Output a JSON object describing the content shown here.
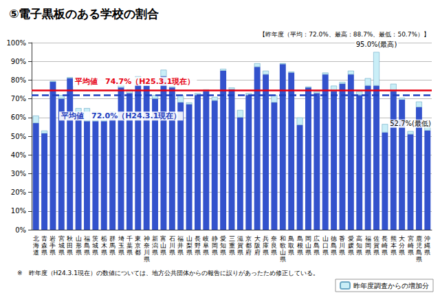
{
  "chart_data": {
    "type": "bar",
    "stacked": true,
    "title": "⑤電子黒板のある学校の割合",
    "subtitle": "【昨年度（平均：72.0%、最高：88.7%、最低：50.7%）】",
    "footnote": "※　昨年度（H24.3.1現在）の数値については、地方公共団体からの報告に誤りがあったため修正している。",
    "categories": [
      "北海道",
      "青森県",
      "岩手県",
      "宮城県",
      "秋田県",
      "山形県",
      "福島県",
      "茨城県",
      "栃木県",
      "群馬県",
      "埼玉県",
      "千葉県",
      "東京都",
      "神奈川県",
      "新潟県",
      "富山県",
      "石川県",
      "福井県",
      "山梨県",
      "長野県",
      "岐阜県",
      "静岡県",
      "愛知県",
      "三重県",
      "滋賀県",
      "京都府",
      "大阪府",
      "兵庫県",
      "奈良県",
      "和歌山県",
      "鳥取県",
      "島根県",
      "岡山県",
      "広島県",
      "山口県",
      "徳島県",
      "香川県",
      "愛媛県",
      "高知県",
      "福岡県",
      "佐賀県",
      "長崎県",
      "熊本県",
      "大分県",
      "宮崎県",
      "鹿児島県",
      "沖縄県"
    ],
    "series": [
      {
        "color": "#3352cc",
        "values": [
          57,
          51.5,
          79,
          70,
          81,
          62,
          58,
          58,
          58,
          60,
          76,
          73,
          78,
          77,
          70,
          82,
          76,
          68,
          67,
          72,
          74,
          69,
          85,
          75,
          60,
          72,
          87,
          83,
          68,
          88.5,
          84,
          56,
          76,
          73,
          83,
          74,
          78,
          83,
          72,
          77,
          77,
          52,
          74,
          69.5,
          51,
          65.5,
          53
        ]
      },
      {
        "name": "昨年度調査からの増加分",
        "color": "#c9eef7",
        "values": [
          4,
          1.5,
          0.5,
          2,
          0.5,
          3,
          7,
          5,
          4,
          3,
          1.5,
          2,
          4,
          2,
          2,
          3.5,
          0.5,
          4,
          1,
          1,
          1,
          2,
          1,
          1,
          4,
          1,
          2,
          2,
          4,
          0.5,
          0.5,
          4,
          0.5,
          1,
          1,
          3,
          1,
          2,
          2,
          4,
          18,
          4.5,
          4,
          1,
          1.7,
          3,
          4.5
        ]
      }
    ],
    "reference_lines": [
      {
        "value": 74.7,
        "label": "平均値　74.7%（H25.3.1現在）",
        "color": "#e60012",
        "line_style": "solid"
      },
      {
        "value": 72.0,
        "label": "平均値　72.0%（H24.3.1現在）",
        "color": "#1f3fbf",
        "line_style": "dashed"
      }
    ],
    "annotations": [
      {
        "category": "佐賀県",
        "text": "95.0%(最高)"
      },
      {
        "category": "宮崎県",
        "text": "52.7%(最低)"
      }
    ],
    "ylim": [
      0,
      100
    ],
    "yticks": [
      {
        "value": 0,
        "label": "0%"
      },
      {
        "value": 10,
        "label": "10%"
      },
      {
        "value": 20,
        "label": "20%"
      },
      {
        "value": 30,
        "label": "30%"
      },
      {
        "value": 40,
        "label": "40%"
      },
      {
        "value": 50,
        "label": "50%"
      },
      {
        "value": 60,
        "label": "60%"
      },
      {
        "value": 70,
        "label": "70%"
      },
      {
        "value": 80,
        "label": "80%"
      },
      {
        "value": 90,
        "label": "90%"
      },
      {
        "value": 100,
        "label": "100%"
      }
    ],
    "grid": true,
    "legend": "bottom-right"
  }
}
